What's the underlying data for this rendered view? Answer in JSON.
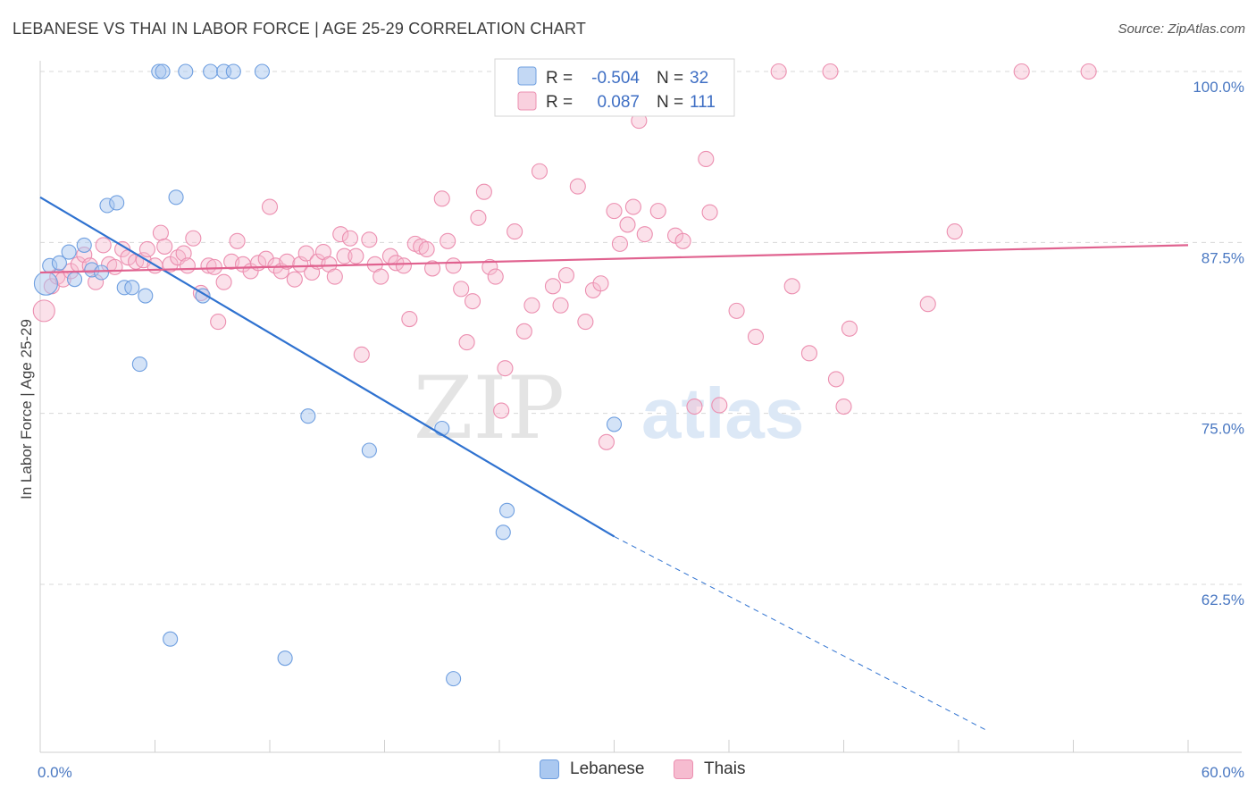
{
  "title": "LEBANESE VS THAI IN LABOR FORCE | AGE 25-29 CORRELATION CHART",
  "source": "Source: ZipAtlas.com",
  "watermark": {
    "zip": "ZIP",
    "atlas": "atlas"
  },
  "colors": {
    "lebanese_fill": "#aac8f0",
    "lebanese_stroke": "#6f9fe0",
    "lebanese_line": "#2f72d0",
    "thai_fill": "#f6bcd0",
    "thai_stroke": "#ec8fb0",
    "thai_line": "#e0628f",
    "tick_label": "#4a78c2",
    "grid": "#d8d8d8"
  },
  "legend": {
    "rows": [
      {
        "series": "Lebanese",
        "r_label": "R =",
        "r_value": "-0.504",
        "n_label": "N =",
        "n_value": "32"
      },
      {
        "series": "Thais",
        "r_label": "R =",
        "r_value": "0.087",
        "n_label": "N =",
        "n_value": "111"
      }
    ]
  },
  "bottom_legend": [
    "Lebanese",
    "Thais"
  ],
  "chart_data": {
    "type": "scatter",
    "xlabel": "",
    "ylabel": "In Labor Force | Age 25-29",
    "xlim": [
      0,
      60
    ],
    "ylim": [
      52,
      103
    ],
    "x_tick_labels": [
      "0.0%",
      "60.0%"
    ],
    "y_ticks": [
      62.5,
      75.0,
      87.5,
      100.0
    ],
    "y_tick_labels": [
      "62.5%",
      "75.0%",
      "87.5%",
      "100.0%"
    ],
    "grid": "horizontal dashed",
    "series": [
      {
        "name": "Lebanese",
        "points": [
          [
            0.3,
            84.5
          ],
          [
            0.5,
            85.8
          ],
          [
            1.0,
            86.0
          ],
          [
            1.5,
            86.8
          ],
          [
            1.8,
            84.8
          ],
          [
            2.3,
            87.3
          ],
          [
            2.7,
            85.5
          ],
          [
            3.2,
            85.3
          ],
          [
            3.5,
            90.2
          ],
          [
            4.0,
            90.4
          ],
          [
            4.4,
            84.2
          ],
          [
            4.8,
            84.2
          ],
          [
            5.2,
            78.6
          ],
          [
            5.5,
            83.6
          ],
          [
            6.2,
            100.0
          ],
          [
            6.4,
            100.0
          ],
          [
            7.1,
            90.8
          ],
          [
            7.6,
            100.0
          ],
          [
            8.5,
            83.6
          ],
          [
            8.9,
            100.0
          ],
          [
            9.6,
            100.0
          ],
          [
            10.1,
            100.0
          ],
          [
            11.6,
            100.0
          ],
          [
            6.8,
            58.5
          ],
          [
            12.8,
            57.1
          ],
          [
            14.0,
            74.8
          ],
          [
            17.2,
            72.3
          ],
          [
            21.0,
            73.9
          ],
          [
            24.4,
            67.9
          ],
          [
            24.2,
            66.3
          ],
          [
            30.0,
            74.2
          ],
          [
            21.6,
            55.6
          ]
        ],
        "trend": {
          "x": [
            0,
            30
          ],
          "y": [
            90.8,
            66.0
          ],
          "dashed_to": [
            49.5,
            51.8
          ]
        }
      },
      {
        "name": "Thais",
        "points": [
          [
            0.2,
            82.5
          ],
          [
            0.6,
            84.3
          ],
          [
            0.9,
            85.0
          ],
          [
            1.2,
            84.8
          ],
          [
            1.6,
            85.4
          ],
          [
            2.0,
            85.9
          ],
          [
            2.3,
            86.6
          ],
          [
            2.6,
            85.8
          ],
          [
            2.9,
            84.6
          ],
          [
            3.3,
            87.3
          ],
          [
            3.6,
            85.9
          ],
          [
            3.9,
            85.7
          ],
          [
            4.3,
            87.0
          ],
          [
            4.6,
            86.4
          ],
          [
            5.0,
            86.1
          ],
          [
            5.4,
            86.2
          ],
          [
            5.6,
            87.0
          ],
          [
            6.0,
            85.8
          ],
          [
            6.3,
            88.2
          ],
          [
            6.5,
            87.2
          ],
          [
            6.8,
            85.9
          ],
          [
            7.2,
            86.4
          ],
          [
            7.5,
            86.7
          ],
          [
            7.7,
            85.8
          ],
          [
            8.0,
            87.8
          ],
          [
            8.4,
            83.8
          ],
          [
            8.8,
            85.8
          ],
          [
            9.1,
            85.7
          ],
          [
            9.3,
            81.7
          ],
          [
            9.6,
            84.6
          ],
          [
            10.0,
            86.1
          ],
          [
            10.3,
            87.6
          ],
          [
            10.6,
            85.9
          ],
          [
            11.0,
            85.4
          ],
          [
            11.4,
            86.0
          ],
          [
            11.8,
            86.3
          ],
          [
            12.0,
            90.1
          ],
          [
            12.3,
            85.8
          ],
          [
            12.6,
            85.4
          ],
          [
            12.9,
            86.1
          ],
          [
            13.3,
            84.8
          ],
          [
            13.6,
            85.9
          ],
          [
            13.9,
            86.7
          ],
          [
            14.2,
            85.3
          ],
          [
            14.5,
            86.1
          ],
          [
            14.8,
            86.8
          ],
          [
            15.1,
            85.9
          ],
          [
            15.4,
            85.0
          ],
          [
            15.7,
            88.1
          ],
          [
            15.9,
            86.5
          ],
          [
            16.2,
            87.8
          ],
          [
            16.5,
            86.5
          ],
          [
            16.8,
            79.3
          ],
          [
            17.2,
            87.7
          ],
          [
            17.5,
            85.9
          ],
          [
            17.8,
            85.0
          ],
          [
            18.3,
            86.5
          ],
          [
            18.6,
            86.0
          ],
          [
            19.0,
            85.8
          ],
          [
            19.3,
            81.9
          ],
          [
            19.6,
            87.4
          ],
          [
            19.9,
            87.2
          ],
          [
            20.2,
            87.0
          ],
          [
            20.5,
            85.6
          ],
          [
            21.0,
            90.7
          ],
          [
            21.3,
            87.6
          ],
          [
            21.6,
            85.8
          ],
          [
            22.0,
            84.1
          ],
          [
            22.3,
            80.2
          ],
          [
            22.6,
            83.2
          ],
          [
            22.9,
            89.3
          ],
          [
            23.2,
            91.2
          ],
          [
            23.5,
            85.7
          ],
          [
            23.8,
            85.0
          ],
          [
            24.1,
            75.2
          ],
          [
            24.3,
            78.3
          ],
          [
            24.8,
            88.3
          ],
          [
            25.3,
            81.0
          ],
          [
            25.7,
            82.9
          ],
          [
            26.1,
            92.7
          ],
          [
            26.8,
            84.3
          ],
          [
            27.2,
            82.9
          ],
          [
            27.5,
            85.1
          ],
          [
            28.1,
            91.6
          ],
          [
            28.5,
            81.7
          ],
          [
            28.9,
            84.0
          ],
          [
            29.3,
            84.5
          ],
          [
            29.6,
            72.9
          ],
          [
            30.0,
            89.8
          ],
          [
            30.3,
            87.4
          ],
          [
            30.7,
            88.8
          ],
          [
            31.0,
            90.1
          ],
          [
            31.3,
            96.4
          ],
          [
            31.6,
            88.1
          ],
          [
            32.3,
            89.8
          ],
          [
            33.2,
            88.0
          ],
          [
            33.6,
            87.6
          ],
          [
            34.2,
            75.5
          ],
          [
            34.8,
            93.6
          ],
          [
            35.0,
            89.7
          ],
          [
            35.5,
            75.6
          ],
          [
            36.4,
            82.5
          ],
          [
            37.4,
            80.6
          ],
          [
            39.3,
            84.3
          ],
          [
            40.2,
            79.4
          ],
          [
            41.6,
            77.5
          ],
          [
            42.0,
            75.5
          ],
          [
            42.3,
            81.2
          ],
          [
            46.4,
            83.0
          ],
          [
            38.6,
            100.0
          ],
          [
            41.3,
            100.0
          ],
          [
            51.3,
            100.0
          ],
          [
            54.8,
            100.0
          ],
          [
            47.8,
            88.3
          ]
        ],
        "trend": {
          "x": [
            0,
            60
          ],
          "y": [
            85.3,
            87.3
          ]
        }
      }
    ]
  }
}
